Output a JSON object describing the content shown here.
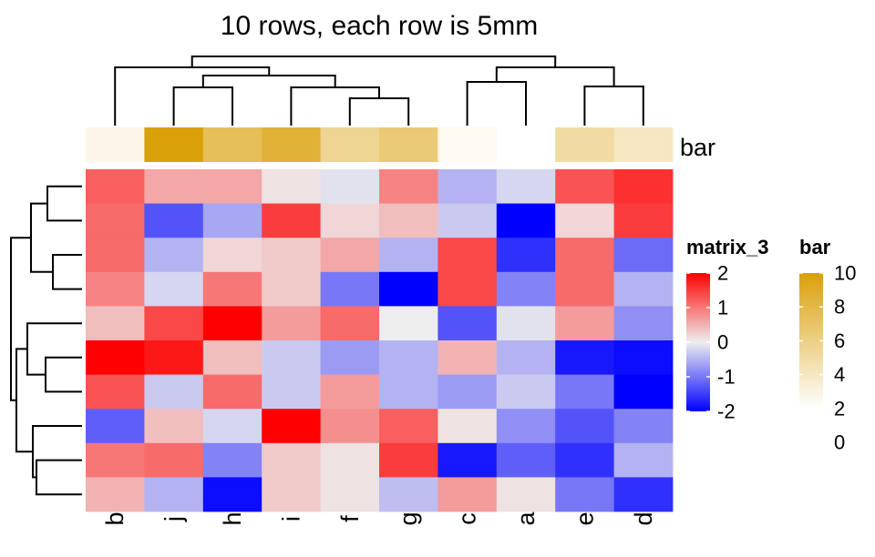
{
  "chart_data": {
    "type": "heatmap",
    "title": "10 rows, each row is 5mm",
    "columns": [
      "b",
      "j",
      "h",
      "i",
      "f",
      "g",
      "c",
      "a",
      "e",
      "d"
    ],
    "values": [
      [
        1.2,
        0.6,
        0.6,
        0.1,
        -0.1,
        0.9,
        -0.5,
        -0.2,
        1.3,
        1.6
      ],
      [
        1.1,
        -1.3,
        -0.6,
        1.5,
        0.2,
        0.4,
        -0.3,
        -2.0,
        0.2,
        1.5
      ],
      [
        1.1,
        -0.5,
        0.2,
        0.3,
        0.6,
        -0.5,
        1.4,
        -1.6,
        1.1,
        -1.1
      ],
      [
        0.9,
        -0.2,
        1.0,
        0.3,
        -1.0,
        -2.3,
        1.4,
        -0.9,
        1.1,
        -0.5
      ],
      [
        0.4,
        1.4,
        2.1,
        0.7,
        1.1,
        0.0,
        -1.3,
        -0.1,
        0.7,
        -0.8
      ],
      [
        2.4,
        1.8,
        0.4,
        -0.3,
        -0.7,
        -0.5,
        0.5,
        -0.5,
        -1.8,
        -1.9
      ],
      [
        1.3,
        -0.3,
        1.1,
        -0.3,
        0.7,
        -0.5,
        -0.7,
        -0.3,
        -1.0,
        -2.4
      ],
      [
        -1.2,
        0.4,
        -0.2,
        2.0,
        0.8,
        1.2,
        0.1,
        -0.8,
        -1.3,
        -0.9
      ],
      [
        1.0,
        1.1,
        -0.9,
        0.3,
        0.1,
        1.5,
        -1.8,
        -1.2,
        -1.6,
        -0.5
      ],
      [
        0.5,
        -0.5,
        -1.9,
        0.3,
        0.1,
        -0.4,
        0.7,
        0.1,
        -1.0,
        -1.6
      ]
    ],
    "bar_annotation": {
      "name": "bar",
      "values": [
        2.8,
        10,
        7.5,
        8.5,
        5.5,
        6.5,
        2.5,
        1.5,
        5.0,
        4.0
      ]
    },
    "legends": [
      {
        "title": "matrix_3",
        "ticks": [
          "2",
          "1",
          "0",
          "-1",
          "-2"
        ],
        "tick_values": [
          2,
          1,
          0,
          -1,
          -2
        ],
        "range": [
          -2,
          2
        ],
        "colors": {
          "low": "#0000FF",
          "mid": "#EEEEEE",
          "high": "#FF0000"
        }
      },
      {
        "title": "bar",
        "ticks": [
          "10",
          "8",
          "6",
          "4",
          "2",
          "0"
        ],
        "tick_values": [
          10,
          8,
          6,
          4,
          2,
          0
        ],
        "range": [
          2,
          10
        ],
        "colors": {
          "low": "#FFFFFF",
          "high": "#DAA00A"
        }
      }
    ],
    "column_dendrogram": "((b,((j,h),(i,(f,g)))),((c,a),(e,d)))",
    "row_dendrogram": "((((r1,r2),(r3,r4))),((r5,(r6,r7)),(r8,(r9,r10))))"
  }
}
